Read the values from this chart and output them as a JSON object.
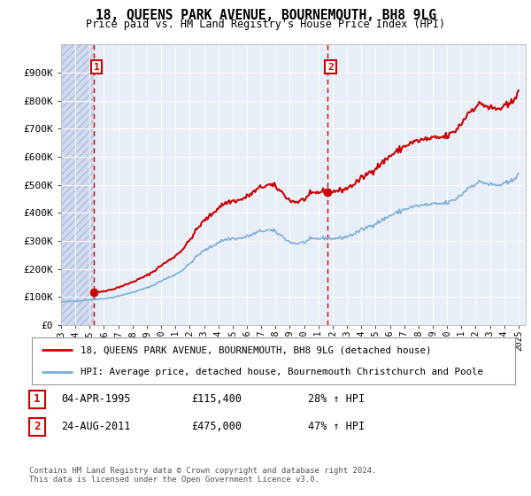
{
  "title": "18, QUEENS PARK AVENUE, BOURNEMOUTH, BH8 9LG",
  "subtitle": "Price paid vs. HM Land Registry's House Price Index (HPI)",
  "legend_line1": "18, QUEENS PARK AVENUE, BOURNEMOUTH, BH8 9LG (detached house)",
  "legend_line2": "HPI: Average price, detached house, Bournemouth Christchurch and Poole",
  "annotation1": {
    "num": "1",
    "date": "04-APR-1995",
    "price": "£115,400",
    "hpi": "28% ↑ HPI"
  },
  "annotation2": {
    "num": "2",
    "date": "24-AUG-2011",
    "price": "£475,000",
    "hpi": "47% ↑ HPI"
  },
  "footer": "Contains HM Land Registry data © Crown copyright and database right 2024.\nThis data is licensed under the Open Government Licence v3.0.",
  "price_paid_color": "#cc0000",
  "hpi_color": "#7aaed6",
  "annotation_line_color": "#cc0000",
  "background_plot": "#e8eef8",
  "ylim": [
    0,
    1000000
  ],
  "yticks": [
    0,
    100000,
    200000,
    300000,
    400000,
    500000,
    600000,
    700000,
    800000,
    900000
  ],
  "ytick_labels": [
    "£0",
    "£100K",
    "£200K",
    "£300K",
    "£400K",
    "£500K",
    "£600K",
    "£700K",
    "£800K",
    "£900K"
  ],
  "purchase1_year": 1995.27,
  "purchase1_price": 115400,
  "purchase2_year": 2011.65,
  "purchase2_price": 475000,
  "xmin": 1993.0,
  "xmax": 2025.5
}
